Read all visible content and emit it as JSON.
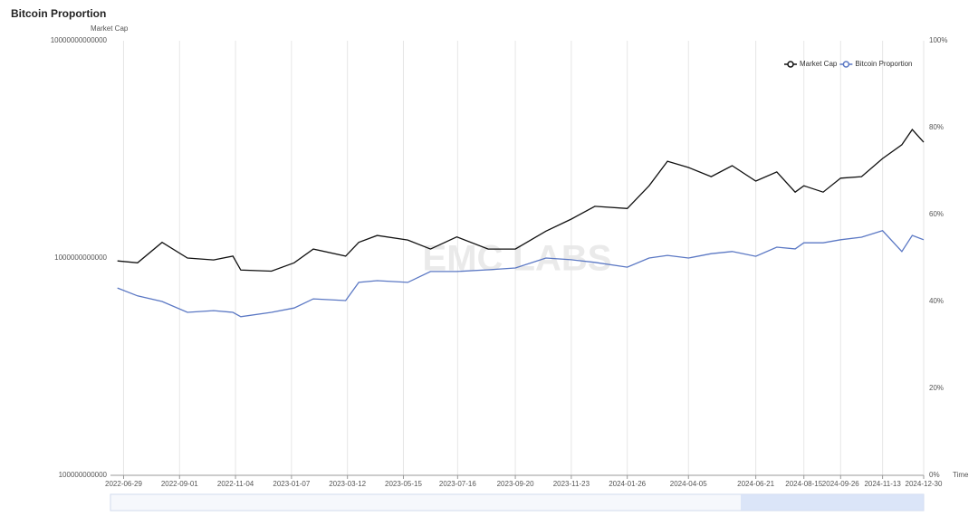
{
  "chart_data": {
    "type": "line",
    "title": "Bitcoin Proportion",
    "y_label": "Market Cap",
    "x_label": "Time",
    "watermark": "EMC LABS",
    "x": [
      "2022-06-22",
      "2022-07-15",
      "2022-08-12",
      "2022-09-10",
      "2022-10-10",
      "2022-11-01",
      "2022-11-10",
      "2022-12-15",
      "2023-01-10",
      "2023-02-01",
      "2023-03-10",
      "2023-03-25",
      "2023-04-15",
      "2023-05-20",
      "2023-06-15",
      "2023-07-15",
      "2023-08-20",
      "2023-09-20",
      "2023-10-25",
      "2023-11-23",
      "2023-12-20",
      "2024-01-26",
      "2024-02-20",
      "2024-03-12",
      "2024-04-05",
      "2024-05-01",
      "2024-05-25",
      "2024-06-21",
      "2024-07-15",
      "2024-08-05",
      "2024-08-15",
      "2024-09-06",
      "2024-09-26",
      "2024-10-20",
      "2024-11-13",
      "2024-12-05",
      "2024-12-17",
      "2024-12-30"
    ],
    "series": [
      {
        "name": "Market Cap",
        "color": "#111111",
        "axis": "y",
        "values": [
          970000000000,
          950000000000,
          1180000000000,
          1000000000000,
          980000000000,
          1020000000000,
          880000000000,
          870000000000,
          950000000000,
          1100000000000,
          1020000000000,
          1180000000000,
          1270000000000,
          1210000000000,
          1100000000000,
          1250000000000,
          1100000000000,
          1100000000000,
          1330000000000,
          1510000000000,
          1730000000000,
          1690000000000,
          2150000000000,
          2790000000000,
          2610000000000,
          2370000000000,
          2660000000000,
          2260000000000,
          2490000000000,
          2010000000000,
          2150000000000,
          2010000000000,
          2330000000000,
          2370000000000,
          2870000000000,
          3320000000000,
          3900000000000,
          3410000000000
        ]
      },
      {
        "name": "Bitcoin Proportion",
        "color": "#5b78c4",
        "axis": "y2",
        "values": [
          43.1,
          41.3,
          40.0,
          37.5,
          37.9,
          37.5,
          36.5,
          37.5,
          38.5,
          40.6,
          40.2,
          44.4,
          44.8,
          44.4,
          46.9,
          46.9,
          47.3,
          47.7,
          50.0,
          49.6,
          49.0,
          47.9,
          50.0,
          50.6,
          50.0,
          51.0,
          51.5,
          50.4,
          52.5,
          52.1,
          53.5,
          53.5,
          54.2,
          54.8,
          56.3,
          51.5,
          55.2,
          54.2
        ]
      }
    ],
    "xlim": [
      "2022-06-14",
      "2024-12-30"
    ],
    "xticks": [
      "2022-06-29",
      "2022-09-01",
      "2022-11-04",
      "2023-01-07",
      "2023-03-12",
      "2023-05-15",
      "2023-07-16",
      "2023-09-20",
      "2023-11-23",
      "2024-01-26",
      "2024-04-05",
      "2024-06-21",
      "2024-08-15",
      "2024-09-26",
      "2024-11-13",
      "2024-12-30"
    ],
    "ylim": [
      100000000000,
      10000000000000
    ],
    "yticks": [
      100000000000,
      1000000000000,
      10000000000000
    ],
    "ylog": true,
    "y2lim": [
      0,
      100
    ],
    "y2ticks": [
      {
        "value": 0,
        "label": "0%"
      },
      {
        "value": 20,
        "label": "20%"
      },
      {
        "value": 40,
        "label": "40%"
      },
      {
        "value": 60,
        "label": "60%"
      },
      {
        "value": 80,
        "label": "80%"
      },
      {
        "value": 100,
        "label": "100%"
      }
    ],
    "grid": true,
    "legend": "top-right"
  }
}
